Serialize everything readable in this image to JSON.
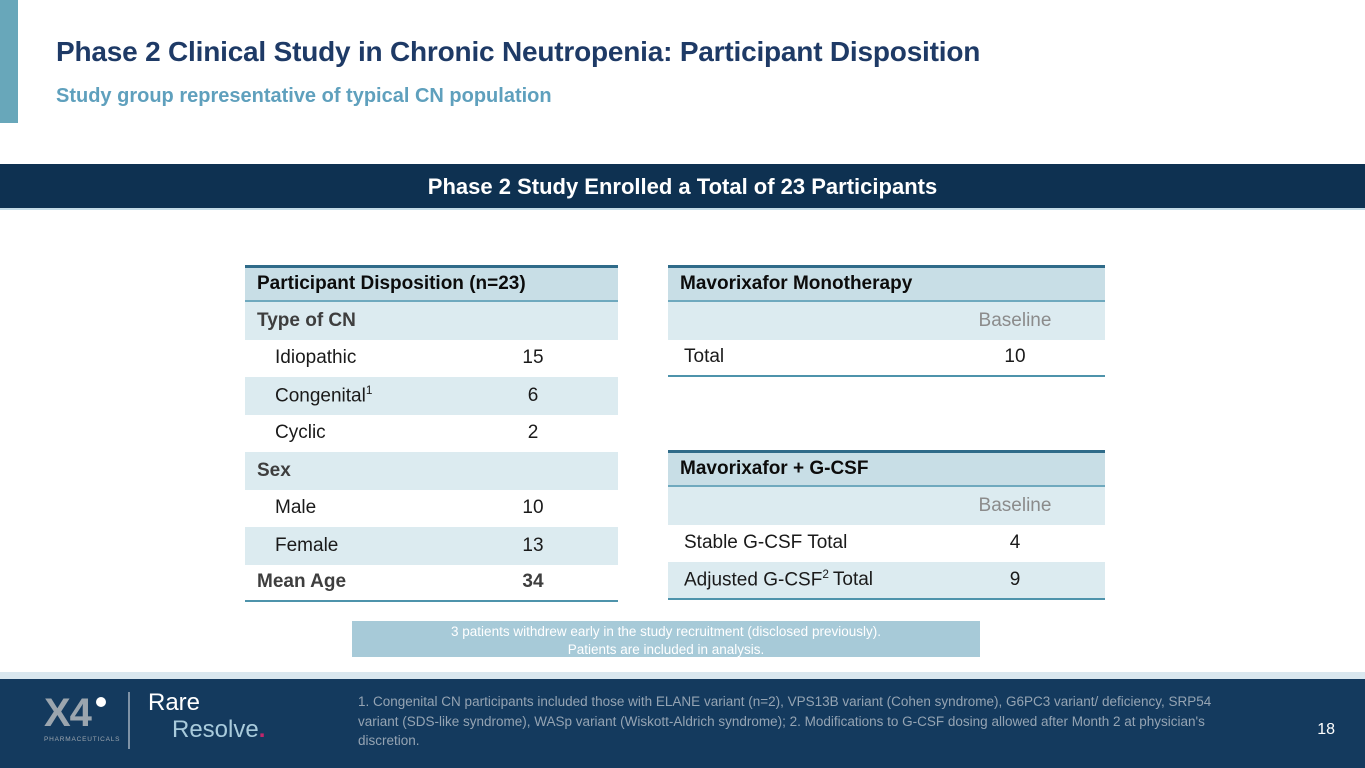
{
  "header": {
    "title": "Phase 2 Clinical Study in Chronic Neutropenia: Participant Disposition",
    "subtitle": "Study group representative of typical CN population"
  },
  "banner": {
    "text": "Phase 2 Study Enrolled a Total of 23 Participants"
  },
  "disposition_table": {
    "header": "Participant Disposition (n=23)",
    "rows": [
      {
        "label": "Type of CN"
      },
      {
        "label": "Idiopathic",
        "value": "15"
      },
      {
        "label": "Congenital",
        "sup": "1",
        "value": "6"
      },
      {
        "label": "Cyclic",
        "value": "2"
      },
      {
        "label": "Sex"
      },
      {
        "label": "Male",
        "value": "10"
      },
      {
        "label": "Female",
        "value": "13"
      },
      {
        "label": "Mean Age",
        "value": "34"
      }
    ]
  },
  "mono_table": {
    "header": "Mavorixafor Monotherapy",
    "column_label": "Baseline",
    "rows": [
      {
        "label": "Total",
        "value": "10"
      }
    ]
  },
  "gcsf_table": {
    "header": "Mavorixafor + G-CSF",
    "column_label": "Baseline",
    "rows": [
      {
        "label": "Stable G-CSF Total",
        "value": "4"
      },
      {
        "label_pre": "Adjusted G-CSF",
        "sup": "2",
        "label_post": "Total",
        "value": "9"
      }
    ]
  },
  "caption": {
    "line1": "3 patients withdrew early in the study recruitment (disclosed previously).",
    "line2": "Patients are included in analysis."
  },
  "footer": {
    "logo_primary": "X4",
    "logo_sub": "PHARMACEUTICALS",
    "brand_line1": "Rare",
    "brand_line2": "Resolve",
    "brand_dot": ".",
    "footnote": "1. Congenital CN participants included those with ELANE variant (n=2), VPS13B variant (Cohen syndrome), G6PC3 variant/ deficiency, SRP54 variant (SDS-like syndrome), WASp variant (Wiskott-Aldrich syndrome); 2. Modifications to G-CSF dosing allowed after Month 2 at physician's discretion.",
    "page_number": "18"
  },
  "colors": {
    "accent_bar": "#68A7BA",
    "title_navy": "#1E3A66",
    "subtitle_blue": "#5FA0BD",
    "banner_navy": "#0E3151",
    "footer_navy": "#143A5E",
    "table_header_bg": "#C8DEE6",
    "table_row_light": "#DCEBF0",
    "table_border_teal": "#4E93AB",
    "caption_bg": "#A7CAD8",
    "resolve_dot_pink": "#C2266B"
  }
}
